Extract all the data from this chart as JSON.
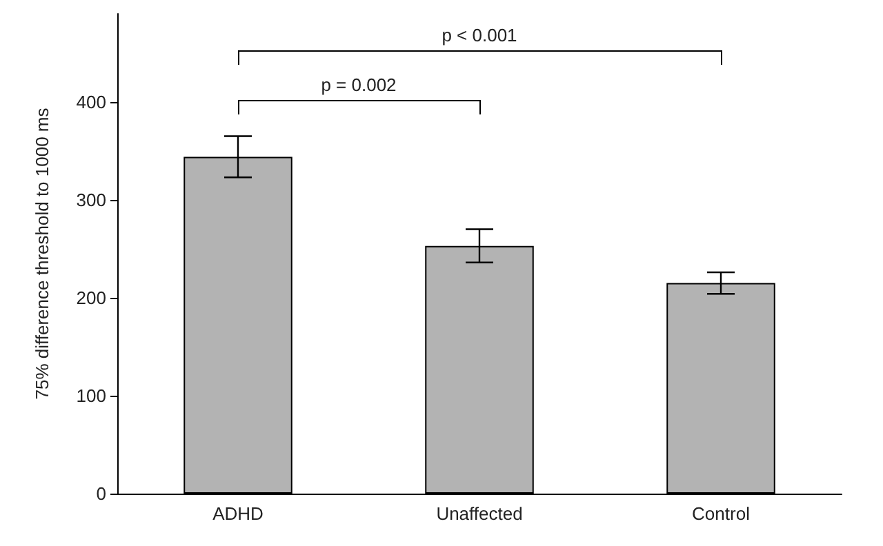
{
  "chart_data": {
    "type": "bar",
    "ylabel": "75% difference threshold to 1000 ms",
    "categories": [
      "ADHD",
      "Unaffected",
      "Control"
    ],
    "values": [
      344,
      253,
      215
    ],
    "errors": [
      21,
      17,
      11
    ],
    "color": "#b3b3b3",
    "ylim": [
      0,
      490
    ],
    "yticks": [
      0,
      100,
      200,
      300,
      400
    ],
    "grid": false,
    "annotations": [
      "p = 0.002",
      "p < 0.001"
    ]
  }
}
